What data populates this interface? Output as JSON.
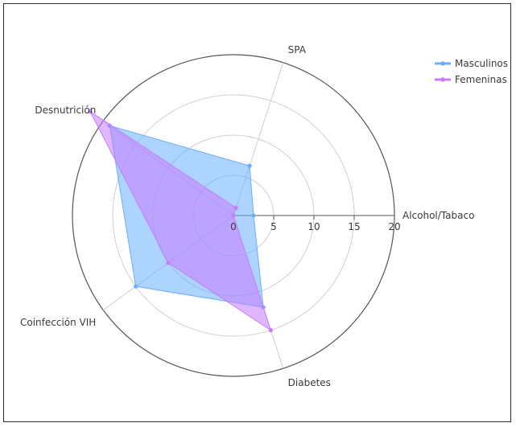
{
  "chart_data": {
    "type": "radar",
    "axes": [
      "Alcohol/Tabaco",
      "SPA",
      "Desnutrición",
      "Coinfección VIH",
      "Diabetes"
    ],
    "radial_ticks": [
      "0",
      "5",
      "10",
      "15",
      "20"
    ],
    "rmax": 20,
    "series": [
      {
        "name": "Masculinos",
        "values": [
          2.5,
          6.5,
          19,
          15,
          12
        ],
        "color": "#6aaeff",
        "fill": "rgba(106,174,255,0.55)"
      },
      {
        "name": "Femeninas",
        "values": [
          0,
          1,
          22,
          10,
          15
        ],
        "color": "#c77cff",
        "fill": "rgba(199,124,255,0.55)"
      }
    ],
    "legend_position": "top-right",
    "grid": true
  }
}
